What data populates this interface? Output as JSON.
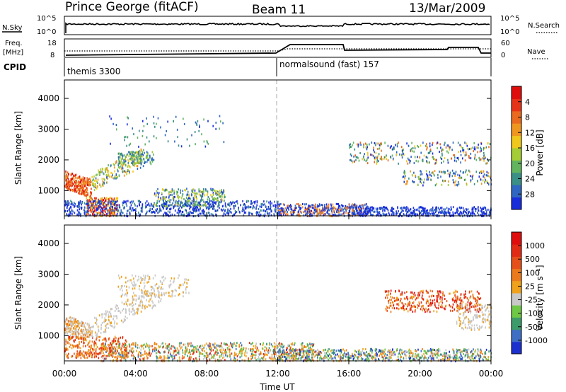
{
  "header": {
    "station": "Prince George (fitACF)",
    "beam": "Beam 11",
    "date": "13/Mar/2009"
  },
  "top_panels": {
    "nsky_label": "N.Sky",
    "nsky_ticks": [
      "10^5",
      "10^0"
    ],
    "nsearch_label": "N.Search",
    "nsearch_ticks": [
      "10^5",
      "10^0"
    ],
    "freq_label_1": "Freq.",
    "freq_label_2": "[MHz]",
    "freq_ticks": [
      "18",
      "8"
    ],
    "nave_label": "Nave",
    "nave_ticks": [
      "60",
      "0"
    ],
    "cpid_label": "CPID",
    "cpid_segments": [
      "themis 3300",
      "normalsound (fast) 157"
    ]
  },
  "x_axis": {
    "label": "Time UT",
    "ticks": [
      "00:00",
      "04:00",
      "08:00",
      "12:00",
      "16:00",
      "20:00",
      "00:00"
    ]
  },
  "chart_data": [
    {
      "type": "heatmap",
      "title": "",
      "xlabel": "Time UT",
      "ylabel": "Slant Range [km]",
      "xlim": [
        0,
        24
      ],
      "ylim": [
        180,
        4600
      ],
      "y_ticks": [
        "1000",
        "2000",
        "3000",
        "4000"
      ],
      "colorbar_label": "Power [dB]",
      "colorbar_ticks": [
        "4",
        "8",
        "12",
        "16",
        "20",
        "24",
        "28"
      ],
      "colorbar_colors": [
        "#1a2ddb",
        "#2f66c2",
        "#3a8f86",
        "#62b45e",
        "#a4cc35",
        "#f0c81c",
        "#ef9620",
        "#ea6a1f",
        "#e63318",
        "#e00d0d"
      ]
    },
    {
      "type": "heatmap",
      "title": "",
      "xlabel": "Time UT",
      "ylabel": "Slant Range [km]",
      "xlim": [
        0,
        24
      ],
      "ylim": [
        180,
        4600
      ],
      "y_ticks": [
        "1000",
        "2000",
        "3000",
        "4000"
      ],
      "colorbar_label": "Velocity [m s⁻¹]",
      "colorbar_ticks": [
        "1000",
        "500",
        "100",
        "25",
        "-25",
        "-100",
        "-500",
        "-1000"
      ],
      "colorbar_colors": [
        "#1c2fcf",
        "#3f6fc4",
        "#3d9a6a",
        "#6ec845",
        "#c8c8c8",
        "#f0a21c",
        "#eb7a1d",
        "#e5501a",
        "#e12b15",
        "#df0d0d"
      ]
    }
  ]
}
